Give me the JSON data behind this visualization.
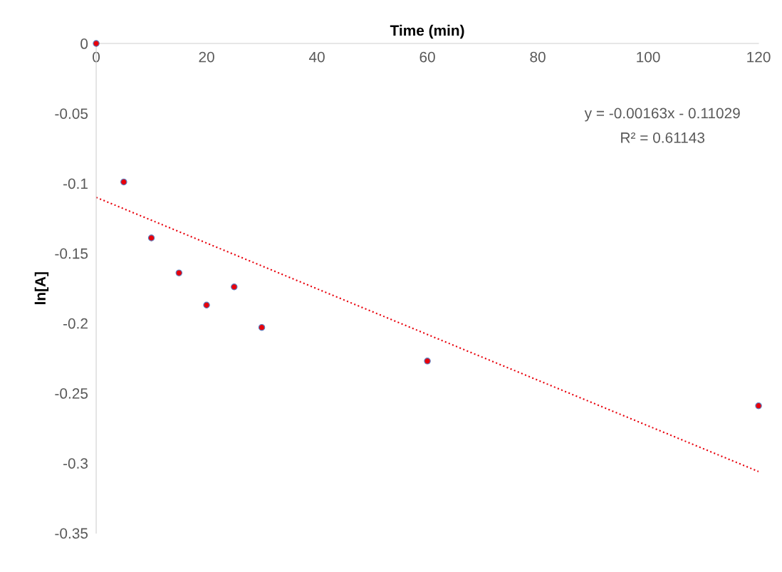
{
  "chart_data": {
    "type": "scatter",
    "xlabel": "Time (min)",
    "ylabel": "ln[A]",
    "x": [
      0,
      5,
      10,
      15,
      20,
      25,
      30,
      60,
      120
    ],
    "series": [
      {
        "color": "#e8000b",
        "marker": "circle",
        "values": [
          0,
          -0.099,
          -0.139,
          -0.164,
          -0.187,
          -0.174,
          -0.203,
          -0.227,
          -0.259
        ]
      },
      {
        "type": "line",
        "color": "#e8000b",
        "line_style": "dotted",
        "x": [
          0,
          120
        ],
        "values": [
          -0.11,
          -0.306
        ]
      }
    ],
    "xlim": [
      0,
      120
    ],
    "xticks": [
      0,
      20,
      40,
      60,
      80,
      100,
      120
    ],
    "ylim": [
      -0.35,
      0
    ],
    "yticks": [
      0,
      -0.05,
      -0.1,
      -0.15,
      -0.2,
      -0.25,
      -0.3,
      -0.35
    ],
    "grid": false,
    "legend": false,
    "annotations": [
      "y = -0.00163x - 0.11029",
      "R² = 0.61143"
    ]
  }
}
